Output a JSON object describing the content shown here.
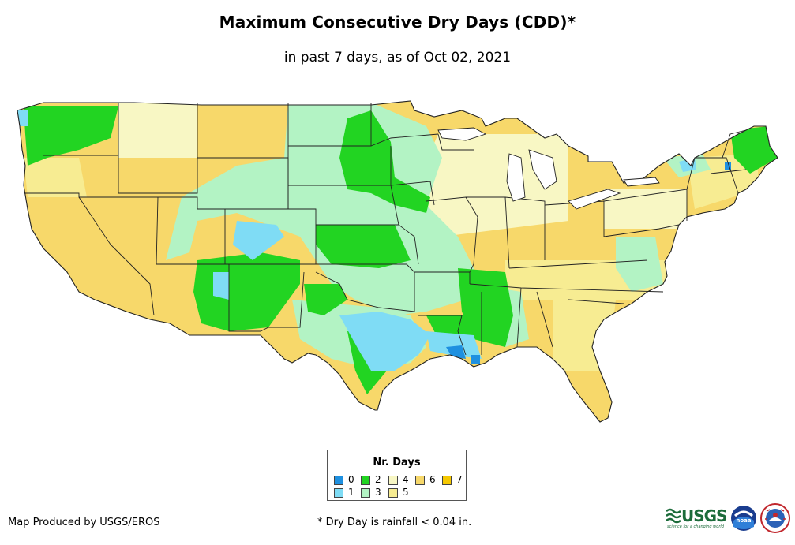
{
  "title": "Maximum Consecutive Dry Days (CDD)*",
  "subtitle": "in past 7 days, as of Oct 02, 2021",
  "legend": {
    "title": "Nr. Days",
    "items": [
      {
        "label": "0",
        "color": "#1e90e0"
      },
      {
        "label": "1",
        "color": "#7fdcf5"
      },
      {
        "label": "2",
        "color": "#22d422"
      },
      {
        "label": "3",
        "color": "#b3f3c4"
      },
      {
        "label": "4",
        "color": "#f8f7c4"
      },
      {
        "label": "5",
        "color": "#f7ec92"
      },
      {
        "label": "6",
        "color": "#f7d86a"
      },
      {
        "label": "7",
        "color": "#f5c800"
      }
    ]
  },
  "credit": "Map Produced by USGS/EROS",
  "footnote": "* Dry Day is rainfall < 0.04 in.",
  "logos": {
    "usgs": "USGS",
    "usgs_tagline": "science for a changing world",
    "noaa": "noaa",
    "nws_icon": "nws-logo-icon"
  }
}
